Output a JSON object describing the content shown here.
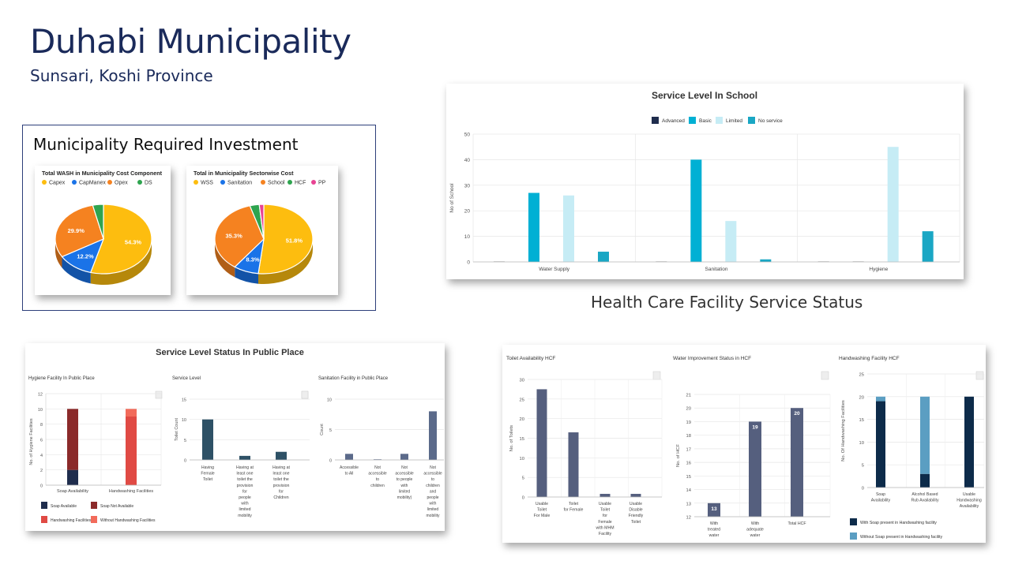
{
  "header": {
    "title": "Duhabi Municipality",
    "subtitle": "Sunsari, Koshi Province",
    "investment_title": "Municipality Required Investment",
    "hcf_heading": "Health Care Facility Service Status"
  },
  "chart_data": [
    {
      "id": "pie-cost-component",
      "type": "pie",
      "title": "Total WASH in Municipality Cost Component",
      "categories": [
        "Capex",
        "CapManex",
        "Opex",
        "DS"
      ],
      "values": [
        54.3,
        12.2,
        29.9,
        3.6
      ],
      "value_labels": [
        "54.3%",
        "12.2%",
        "29.9%",
        ""
      ],
      "colors": [
        "#fdbd0f",
        "#1a73e8",
        "#f58220",
        "#2ea44f"
      ]
    },
    {
      "id": "pie-sectorwise",
      "type": "pie",
      "title": "Total in Municipality Sectorwise Cost",
      "categories": [
        "WSS",
        "Sanitation",
        "School",
        "HCF",
        "PP"
      ],
      "values": [
        51.8,
        8.3,
        35.3,
        3.1,
        1.5
      ],
      "value_labels": [
        "51.8%",
        "8.3%",
        "35.3%",
        "",
        ""
      ],
      "colors": [
        "#fdbd0f",
        "#1a73e8",
        "#f58220",
        "#2ea44f",
        "#e84393"
      ]
    },
    {
      "id": "school-service-level",
      "type": "bar",
      "title": "Service Level In School",
      "categories": [
        "Water Supply",
        "Sanitation",
        "Hygiene"
      ],
      "series": [
        {
          "name": "Advanced",
          "values": [
            0,
            0,
            0
          ]
        },
        {
          "name": "Basic",
          "values": [
            27,
            40,
            0
          ]
        },
        {
          "name": "Limited",
          "values": [
            26,
            16,
            45
          ]
        },
        {
          "name": "No service",
          "values": [
            4,
            1,
            12
          ]
        }
      ],
      "colors": [
        "#1f2d4d",
        "#00b0d4",
        "#c6ecf5",
        "#1aa7c4"
      ],
      "ylabel": "No of School",
      "ylim": [
        0,
        50
      ],
      "yticks": [
        "0",
        "10",
        "20",
        "30",
        "40",
        "50"
      ]
    },
    {
      "id": "public-place",
      "title": "Service Level Status In Public Place",
      "panels": [
        {
          "type": "bar",
          "stacked": true,
          "title": "Hygiene Facility In Public Place",
          "categories": [
            "Soap Availability",
            "Handwashing Facilities"
          ],
          "series": [
            {
              "name": "Soap Available",
              "values": [
                2,
                0
              ]
            },
            {
              "name": "Soap Not Available",
              "values": [
                8,
                0
              ]
            },
            {
              "name": "Handwashing Facilities",
              "values": [
                0,
                9
              ]
            },
            {
              "name": "Without Handwashing Facilities",
              "values": [
                0,
                1
              ]
            }
          ],
          "colors": [
            "#1f2d4d",
            "#8b2a2a",
            "#e04a44",
            "#f26b5b"
          ],
          "ylabel": "No. of Hygiene Facilities",
          "ylim": [
            0,
            12
          ],
          "yticks": [
            "0",
            "2",
            "4",
            "6",
            "8",
            "10",
            "12"
          ]
        },
        {
          "type": "bar",
          "title": "Service Level",
          "categories": [
            "Having Female Toilet",
            "Having at least one toilet the provision for people with limited mobility",
            "Having at least one toilet the provision for Children"
          ],
          "tick_lines": [
            [
              "Having",
              "Female",
              "Toilet"
            ],
            [
              "Having at",
              "least one",
              "toilet the",
              "provision",
              "for",
              "people",
              "with",
              "limited",
              "mobility"
            ],
            [
              "Having at",
              "least one",
              "toilet the",
              "provision",
              "for",
              "Children"
            ]
          ],
          "values": [
            10,
            1,
            2
          ],
          "color": "#2e5166",
          "ylabel": "Toilet Count",
          "ylim": [
            0,
            15
          ],
          "yticks": [
            "0",
            "5",
            "10",
            "15"
          ]
        },
        {
          "type": "bar",
          "title": "Sanitation Facility in Public Place",
          "categories": [
            "Accessible to All",
            "Not accessible to children",
            "Not accessible to people with limited mobility",
            "Not accessible to children and people with limited mobility"
          ],
          "tick_lines": [
            [
              "Accessible",
              "to All"
            ],
            [
              "Not",
              "accessible",
              "to",
              "children"
            ],
            [
              "Not",
              "accessible",
              "to people",
              "with",
              "limited",
              "mobility)"
            ],
            [
              "Not",
              "accessible",
              "to",
              "children",
              "and",
              "people",
              "with",
              "limited",
              "mobility"
            ]
          ],
          "values": [
            1,
            0,
            1,
            8
          ],
          "color": "#5b6a8a",
          "ylabel": "Count",
          "ylim": [
            0,
            10
          ],
          "yticks": [
            "0",
            "5",
            "10"
          ]
        }
      ]
    },
    {
      "id": "hcf",
      "panels": [
        {
          "type": "bar",
          "title": "Toilet Availability HCF",
          "categories": [
            "Usable Toilet For Male",
            "Toilet for Female",
            "Usable Toilet for Female with MHM Facility",
            "Usable Disable Friendly Toilet"
          ],
          "tick_lines": [
            [
              "Usable",
              "Toilet",
              "For Male"
            ],
            [
              "Toilet",
              "for Female"
            ],
            [
              "Usable",
              "Toilet",
              "for",
              "Female",
              "with MHM",
              "Facility"
            ],
            [
              "Usable",
              "Disable",
              "Friendly",
              "Toilet"
            ]
          ],
          "values": [
            27.5,
            16.5,
            0.8,
            0.8
          ],
          "color": "#555f7e",
          "ylabel": "No. of Toilets",
          "ylim": [
            0,
            30
          ],
          "yticks": [
            "0",
            "5",
            "10",
            "15",
            "20",
            "25",
            "30"
          ]
        },
        {
          "type": "bar",
          "title": "Water Improvement Status in HCF",
          "categories": [
            "With treated water",
            "With adequate water",
            "Total HCF"
          ],
          "tick_lines": [
            [
              "With",
              "treated",
              "water"
            ],
            [
              "With",
              "adequate",
              "water"
            ],
            [
              "Total HCF"
            ]
          ],
          "values": [
            13,
            19,
            20
          ],
          "value_labels": [
            "13",
            "19",
            "20"
          ],
          "color": "#555f7e",
          "ylabel": "No. of HCF",
          "ylim": [
            12,
            21
          ],
          "yticks": [
            "12",
            "13",
            "14",
            "15",
            "16",
            "17",
            "18",
            "19",
            "20",
            "21"
          ]
        },
        {
          "type": "bar",
          "stacked": true,
          "title": "Handwashing Facility HCF",
          "categories": [
            "Soap Availability",
            "Alcohol Based Rub Availability",
            "Usable Handwashing Availability"
          ],
          "tick_lines": [
            [
              "Soap",
              "Availability"
            ],
            [
              "Alcohol Based",
              "Rub Availability"
            ],
            [
              "Usable",
              "Handwashing",
              "Availability"
            ]
          ],
          "series": [
            {
              "name": "With Soap present in Handwashing facility",
              "values": [
                19,
                3,
                20
              ]
            },
            {
              "name": "Without Soap present in Handwashing facility",
              "values": [
                1,
                17,
                0
              ]
            }
          ],
          "colors": [
            "#0d2b4a",
            "#5b9ec2"
          ],
          "ylabel": "No. Of Handwashing Facilities",
          "ylim": [
            0,
            25
          ],
          "yticks": [
            "0",
            "5",
            "10",
            "15",
            "20",
            "25"
          ]
        }
      ]
    }
  ]
}
